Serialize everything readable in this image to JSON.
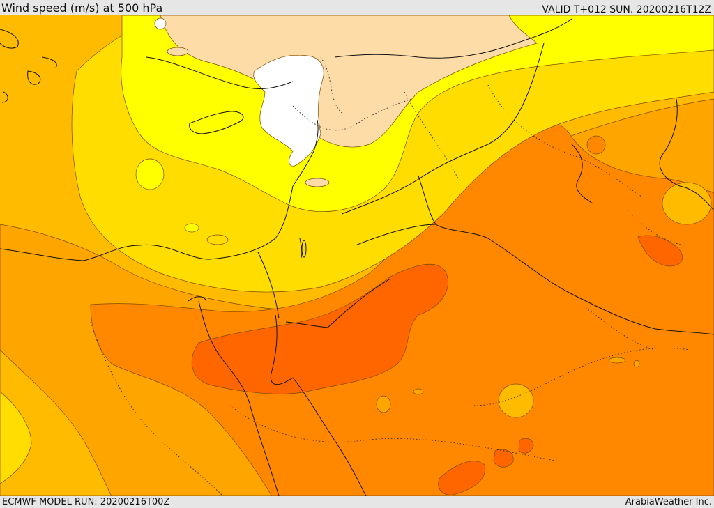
{
  "header": {
    "title": "Wind speed (m/s) at 500 hPa",
    "valid": "VALID T+012 SUN. 20200216T12Z"
  },
  "footer": {
    "model_run": "ECMWF MODEL RUN: 20200216T00Z",
    "credit": "ArabiaWeather Inc."
  },
  "colors": {
    "white": "#ffffff",
    "peach": "#fddca8",
    "yellow": "#ffff00",
    "gold": "#ffdd00",
    "amber": "#ffbb00",
    "orange-light": "#ffa500",
    "orange": "#ff8800",
    "orange-dark": "#ff6600"
  }
}
